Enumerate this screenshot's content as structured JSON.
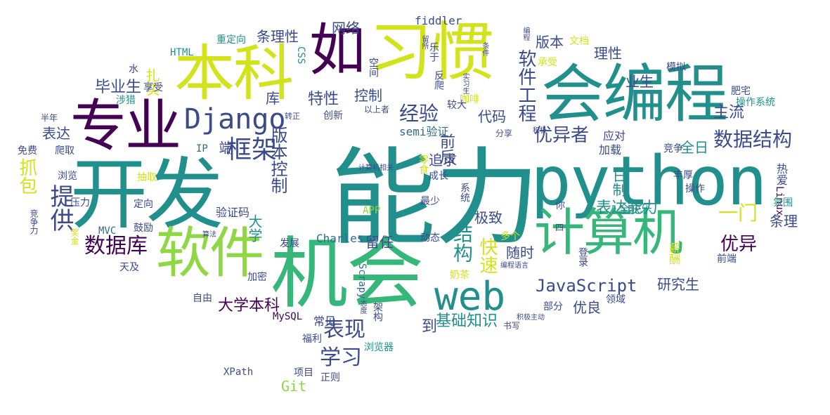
{
  "colors": {
    "background": "#ffffff",
    "dark_purple": "#440154",
    "indigo": "#3b4a8b",
    "blue": "#2f6b8e",
    "teal": "#21908d",
    "green": "#35b779",
    "lime": "#8fd744",
    "yellow": "#d2e21b"
  },
  "words": {
    "nengli": "能力",
    "python": "python",
    "kaifa": "开发",
    "jihui": "机会",
    "huibiancheng": "会编程",
    "xiguan": "习惯",
    "benke": "本科",
    "zhuanye": "专业",
    "ruanjian": "软件",
    "jisuanji": "计算机",
    "ru": "如",
    "web": "web",
    "django": "Django",
    "kuangjia": "框架",
    "shujujiegou": "数据结构",
    "youyizhe": "优异者",
    "shujuku": "数据库",
    "javascript": "JavaScript",
    "biaoxian": "表现",
    "xuexi": "学习",
    "jingyan": "经验",
    "ruanjiangongcheng": "软件工程",
    "banbenkongzhi": "版本控制",
    "tigong": "提供",
    "zhuabao": "抓包",
    "youyi": "优异",
    "jiegou": "结构",
    "kuaisu": "快速",
    "biaodanengli": "表达能力",
    "daxuebenke": "大学本科",
    "biyesheng": "毕业生",
    "jichuzhishi": "基础知识",
    "yimen": "一门",
    "zhuliu": "主流",
    "tiaolixing": "条理性",
    "wangluo": "网络",
    "texing": "特性",
    "kongzhi": "控制",
    "daima": "代码",
    "banben": "版本",
    "lixing": "理性",
    "yesheng": "业生",
    "zhishi": "扎实",
    "ku": "库",
    "biaoda": "表达",
    "duan": "端",
    "dao": "到",
    "yanjiusheng": "研究生",
    "youliang": "优良",
    "git": "Git",
    "quanri": "全日",
    "rizhi": "日制",
    "qianhou": "前后",
    "zhuiqiu": "追求",
    "jizhi": "极致",
    "suishi": "随时",
    "liuren": "留任",
    "daxue": "大学",
    "tiaoli": "条理",
    "fiddler": "fiddler",
    "charles": "Charles",
    "xpath": "XPath",
    "scrapy": "Scrapy",
    "semi": "semi验证",
    "linux": "Linux",
    "mysql": "MySQL",
    "mvc": "MVC",
    "html": "HTML",
    "css": "CSS",
    "ip": "IP",
    "app": "APP",
    "yanzhengma": "验证码",
    "jiaqiang": "加载",
    "yingdui": "应对",
    "jingzheng": "竞争",
    "fengfu": "丰厚",
    "caozuo": "操作",
    "reai": "热爱",
    "quankuaile": "全快乐",
    "qifen": "氛围",
    "feizhai": "肥宅",
    "moni": "模拟",
    "wendang": "文档",
    "chenxing": "承受",
    "lingyu": "领域",
    "bufen": "部分",
    "denglu": "登录",
    "qianduan": "前端",
    "xinchou": "薪酬",
    "changjian": "常见",
    "fuli": "福利",
    "liulanqi": "浏览器",
    "xiangmu": "项目",
    "zhengze": "正则",
    "jiami": "加密",
    "ziyou": "自由",
    "fazhan": "发展",
    "dongtai": "动态",
    "duoge": "多个",
    "naicha": "奶茶",
    "zuishao": "最少",
    "chengzhang": "成长",
    "xitong": "系统",
    "lingshi": "零食",
    "fenxiang": "分享",
    "kafei": "咖啡",
    "jiaoda": "较大",
    "fanpa": "反爬",
    "kongjian": "空间",
    "yishang": "以上者",
    "chuangxin": "创新",
    "zhuanzheng": "转正",
    "chongdingxiang": "重定向",
    "shui": "水",
    "xiangshou": "享受",
    "shelie": "涉猎",
    "bannian": "半年",
    "mianfei": "免费",
    "paqu": "爬取",
    "liulan": "浏览",
    "chouqu": "抽取",
    "yali": "压力",
    "dingxiang": "定向",
    "guli": "鼓励",
    "tianji": "天及",
    "jingzhengli": "竞争力",
    "jiangjin": "奖金",
    "suanfa": "算法",
    "jisuanjixiangguan": "计算机相关",
    "taidu": "态度",
    "jijizhudong": "积极主动",
    "shuxie": "书写",
    "biancheng": "编程",
    "bianchengyuyan": "编程语言",
    "tiaojian": "条件",
    "jiji": "积极",
    "shixisheng": "实习生",
    "liusuo": "留所",
    "leyu": "乐于",
    "ni": "你",
    "si": "四",
    "caozuoxitong": "操作系统",
    "jiagou": "架构"
  }
}
